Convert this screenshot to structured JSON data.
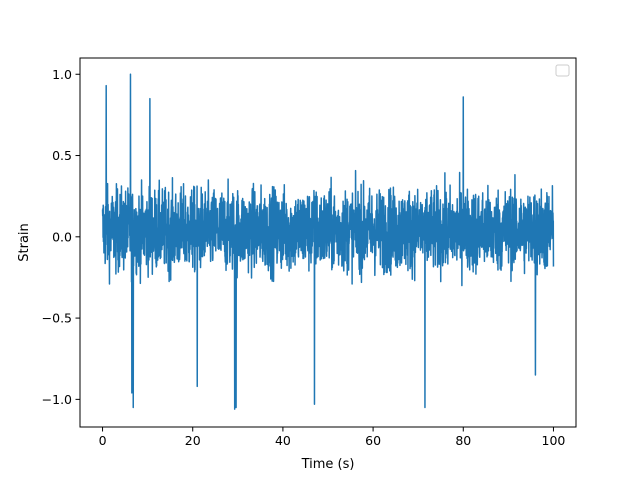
{
  "chart_data": {
    "type": "line",
    "title": "",
    "xlabel": "Time (s)",
    "ylabel": "Strain",
    "xlim": [
      -5,
      105
    ],
    "ylim": [
      -1.17,
      1.1
    ],
    "xticks": [
      0,
      20,
      40,
      60,
      80,
      100
    ],
    "xtick_labels": [
      "0",
      "20",
      "40",
      "60",
      "80",
      "100"
    ],
    "yticks": [
      -1.0,
      -0.5,
      0.0,
      0.5,
      1.0
    ],
    "ytick_labels": [
      "−1.0",
      "−0.5",
      "0.0",
      "0.5",
      "1.0"
    ],
    "grid": false,
    "legend": {
      "placement": "top-right",
      "entries": []
    },
    "series": [
      {
        "color": "#1f77b4",
        "x_range": [
          0,
          100
        ],
        "typical_envelope": [
          -0.55,
          0.7
        ],
        "extremes": [
          {
            "x": 0.8,
            "y": 0.93
          },
          {
            "x": 6.2,
            "y": 1.0
          },
          {
            "x": 6.5,
            "y": -0.96
          },
          {
            "x": 6.8,
            "y": -1.05
          },
          {
            "x": 10.5,
            "y": 0.85
          },
          {
            "x": 21.0,
            "y": -0.92
          },
          {
            "x": 29.3,
            "y": -1.06
          },
          {
            "x": 29.6,
            "y": -1.05
          },
          {
            "x": 47.0,
            "y": -1.03
          },
          {
            "x": 71.5,
            "y": -1.05
          },
          {
            "x": 80.0,
            "y": 0.86
          },
          {
            "x": 96.0,
            "y": -0.85
          }
        ]
      }
    ],
    "colors": {
      "line": "#1f77b4",
      "axes": "#000000",
      "background": "#ffffff"
    }
  }
}
